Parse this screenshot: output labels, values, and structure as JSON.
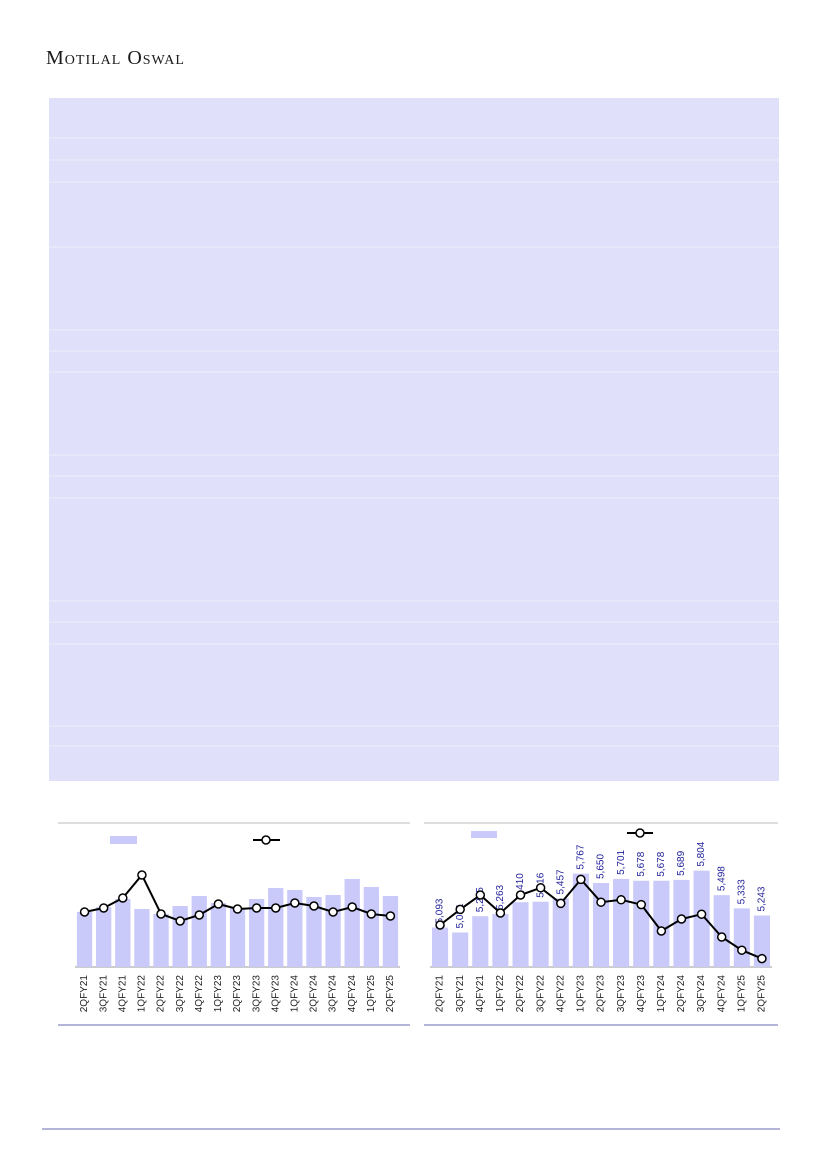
{
  "header": {
    "title": "Motilal Oswal"
  },
  "chart_data": [
    {
      "type": "bar",
      "categories": [
        "2QFY21",
        "3QFY21",
        "4QFY21",
        "1QFY22",
        "2QFY22",
        "3QFY22",
        "4QFY22",
        "1QFY23",
        "2QFY23",
        "3QFY23",
        "4QFY23",
        "1QFY24",
        "2QFY24",
        "3QFY24",
        "4QFY24",
        "1QFY25",
        "2QFY25"
      ],
      "series": [
        {
          "color": "#c9c9fa",
          "values": [
            55,
            60,
            68,
            58,
            53,
            61,
            71,
            64,
            59,
            68,
            79,
            77,
            70,
            72,
            88,
            80,
            71
          ]
        },
        {
          "type": "line",
          "color": "#000000",
          "values": [
            55,
            59,
            69,
            92,
            53,
            46,
            52,
            63,
            58,
            59,
            59,
            64,
            61,
            55,
            60,
            53,
            51
          ]
        }
      ],
      "ylim": [
        0,
        120
      ]
    },
    {
      "type": "bar",
      "categories": [
        "2QFY21",
        "3QFY21",
        "4QFY21",
        "1QFY22",
        "2QFY22",
        "3QFY22",
        "4QFY22",
        "1QFY23",
        "2QFY23",
        "3QFY23",
        "4QFY23",
        "1QFY24",
        "2QFY24",
        "3QFY24",
        "4QFY24",
        "1QFY25",
        "2QFY25"
      ],
      "series": [
        {
          "color": "#c9c9fa",
          "label_color": "#1f1f9a",
          "values": [
            5093,
            5031,
            5235,
            5263,
            5410,
            5416,
            5457,
            5767,
            5650,
            5701,
            5678,
            5678,
            5689,
            5804,
            5498,
            5333,
            5243
          ],
          "value_labels": [
            "5,093",
            "5,031",
            "5,235",
            "5,263",
            "5,410",
            "5,416",
            "5,457",
            "5,767",
            "5,650",
            "5,701",
            "5,678",
            "5,678",
            "5,689",
            "5,804",
            "5,498",
            "5,333",
            "5,243"
          ]
        },
        {
          "type": "line",
          "color": "#000000",
          "axis": "y2",
          "values": [
            3.5,
            4.8,
            6.0,
            4.5,
            6.0,
            6.6,
            5.3,
            7.3,
            5.4,
            5.6,
            5.2,
            3.0,
            4.0,
            4.4,
            2.5,
            1.4,
            0.7
          ]
        }
      ],
      "ylim": [
        4600,
        6100
      ],
      "y2lim": [
        0,
        10
      ]
    }
  ]
}
